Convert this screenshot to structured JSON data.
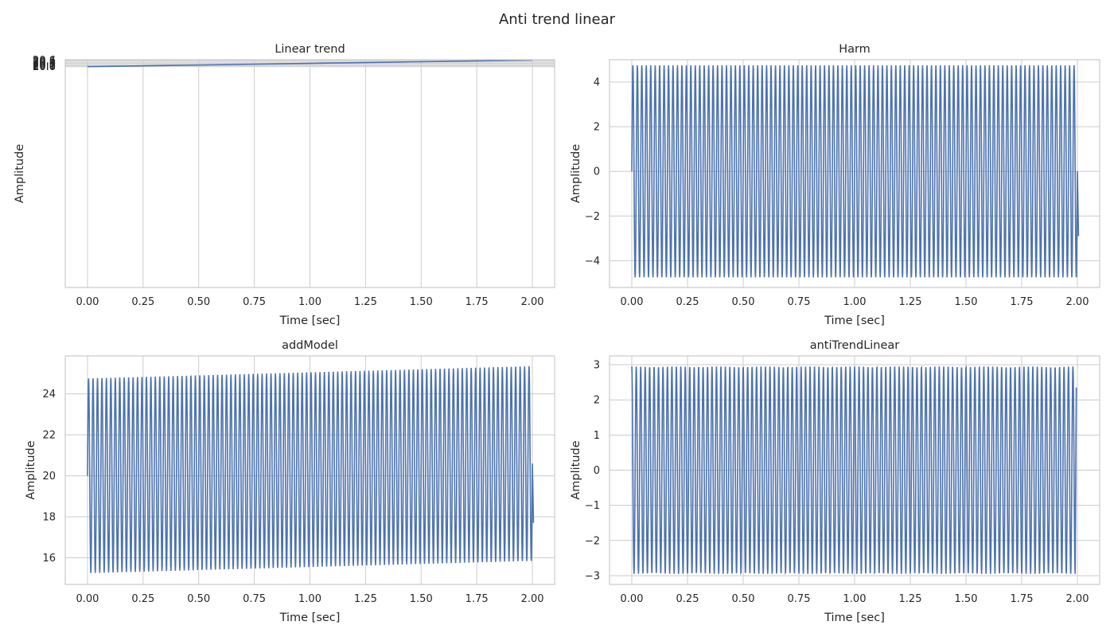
{
  "figure": {
    "title": "Anti trend linear"
  },
  "series_color": "#4c72b0",
  "chart_data": [
    {
      "type": "line",
      "title": "Linear trend",
      "xlabel": "Time [sec]",
      "ylabel": "Amplitude",
      "xlim": [
        -0.1,
        2.1
      ],
      "ylim": [
        -0.03,
        20.63
      ],
      "ylim_note_unused": null,
      "xticks": [
        0,
        0.25,
        0.5,
        0.75,
        1.0,
        1.25,
        1.5,
        1.75,
        2.0
      ],
      "xtick_labels": [
        "0.00",
        "0.25",
        "0.50",
        "0.75",
        "1.00",
        "1.25",
        "1.50",
        "1.75",
        "2.00"
      ],
      "yticks": [
        20.0,
        20.1,
        20.2,
        20.3,
        20.4,
        20.5,
        20.6
      ],
      "ytick_labels": [
        "20.0",
        "20.1",
        "20.2",
        "20.3",
        "20.4",
        "20.5",
        "20.6"
      ],
      "grid": true,
      "signal": {
        "kind": "linear",
        "t_start": 0,
        "t_end": 2,
        "y_start": 20.0,
        "y_end": 20.6
      }
    },
    {
      "type": "line",
      "title": "Harm",
      "xlabel": "Time [sec]",
      "ylabel": "Amplitude",
      "xlim": [
        -0.1,
        2.1
      ],
      "ylim": [
        -5.2,
        5.0
      ],
      "xticks": [
        0,
        0.25,
        0.5,
        0.75,
        1.0,
        1.25,
        1.5,
        1.75,
        2.0
      ],
      "xtick_labels": [
        "0.00",
        "0.25",
        "0.50",
        "0.75",
        "1.00",
        "1.25",
        "1.50",
        "1.75",
        "2.00"
      ],
      "yticks": [
        -4,
        -2,
        0,
        2,
        4
      ],
      "ytick_labels": [
        "−4",
        "−2",
        "0",
        "2",
        "4"
      ],
      "grid": true,
      "signal": {
        "kind": "harmonic",
        "t_start": 0,
        "t_end": 2,
        "amplitude": 4.75,
        "cycles": 100,
        "offset_start": 0,
        "offset_end": 0,
        "start_value": 0,
        "end_value": -2.9
      }
    },
    {
      "type": "line",
      "title": "addModel",
      "xlabel": "Time [sec]",
      "ylabel": "Amplitude",
      "xlim": [
        -0.1,
        2.1
      ],
      "ylim": [
        14.7,
        25.85
      ],
      "xticks": [
        0,
        0.25,
        0.5,
        0.75,
        1.0,
        1.25,
        1.5,
        1.75,
        2.0
      ],
      "xtick_labels": [
        "0.00",
        "0.25",
        "0.50",
        "0.75",
        "1.00",
        "1.25",
        "1.50",
        "1.75",
        "2.00"
      ],
      "yticks": [
        16,
        18,
        20,
        22,
        24
      ],
      "ytick_labels": [
        "16",
        "18",
        "20",
        "22",
        "24"
      ],
      "grid": true,
      "signal": {
        "kind": "harmonic",
        "t_start": 0,
        "t_end": 2,
        "amplitude": 4.75,
        "cycles": 100,
        "offset_start": 20.0,
        "offset_end": 20.6,
        "start_value": 20.0,
        "end_value": 17.7
      }
    },
    {
      "type": "line",
      "title": "antiTrendLinear",
      "xlabel": "Time [sec]",
      "ylabel": "Amplitude",
      "xlim": [
        -0.1,
        2.1
      ],
      "ylim": [
        -3.25,
        3.25
      ],
      "xticks": [
        0,
        0.25,
        0.5,
        0.75,
        1.0,
        1.25,
        1.5,
        1.75,
        2.0
      ],
      "xtick_labels": [
        "0.00",
        "0.25",
        "0.50",
        "0.75",
        "1.00",
        "1.25",
        "1.50",
        "1.75",
        "2.00"
      ],
      "yticks": [
        -3,
        -2,
        -1,
        0,
        1,
        2,
        3
      ],
      "ytick_labels": [
        "−3",
        "−2",
        "−1",
        "0",
        "1",
        "2",
        "3"
      ],
      "grid": true,
      "signal": {
        "kind": "harmonic",
        "t_start": 0,
        "t_end": 1.99,
        "amplitude": 2.95,
        "cycles": 100,
        "offset_start": 0,
        "offset_end": 0,
        "start_value": 2.95,
        "end_value": 2.35
      }
    }
  ]
}
